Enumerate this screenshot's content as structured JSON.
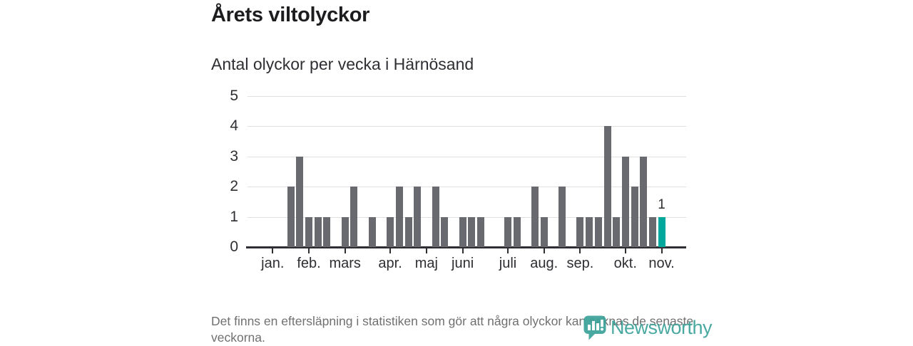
{
  "header": {
    "title": "Årets viltolyckor",
    "subtitle": "Antal olyckor per vecka i Härnösand"
  },
  "chart_data": {
    "type": "bar",
    "title": "Årets viltolyckor",
    "subtitle": "Antal olyckor per vecka i Härnösand",
    "x_unit": "vecka (week of year)",
    "ylabel": "",
    "xlabel": "",
    "ylim": [
      0,
      5
    ],
    "yticks": [
      0,
      1,
      2,
      3,
      4,
      5
    ],
    "grid": "horizontal",
    "weeks_start": 1,
    "values": [
      0,
      0,
      2,
      3,
      1,
      1,
      1,
      0,
      1,
      2,
      0,
      1,
      0,
      1,
      2,
      1,
      2,
      0,
      2,
      1,
      0,
      1,
      1,
      1,
      0,
      0,
      1,
      1,
      0,
      2,
      1,
      0,
      2,
      0,
      1,
      1,
      1,
      4,
      1,
      3,
      2,
      3,
      1,
      1
    ],
    "highlight_week": 44,
    "highlight_value_label": "1",
    "months": [
      {
        "label": "jan.",
        "week": 1
      },
      {
        "label": "feb.",
        "week": 5
      },
      {
        "label": "mars",
        "week": 9
      },
      {
        "label": "apr.",
        "week": 14
      },
      {
        "label": "maj",
        "week": 18
      },
      {
        "label": "juni",
        "week": 22
      },
      {
        "label": "juli",
        "week": 27
      },
      {
        "label": "aug.",
        "week": 31
      },
      {
        "label": "sep.",
        "week": 35
      },
      {
        "label": "okt.",
        "week": 40
      },
      {
        "label": "nov.",
        "week": 44
      }
    ],
    "colors": {
      "bar": "#696970",
      "highlight": "#00a79c",
      "gridline": "#e0e0e0",
      "axis": "#2e2e33"
    }
  },
  "footer": {
    "note": "Det finns en eftersläpning i statistiken som gör att några olyckor kan saknas de senaste veckorna.",
    "logo_text": "Newsworthy",
    "logo_color": "#3aa29a"
  }
}
